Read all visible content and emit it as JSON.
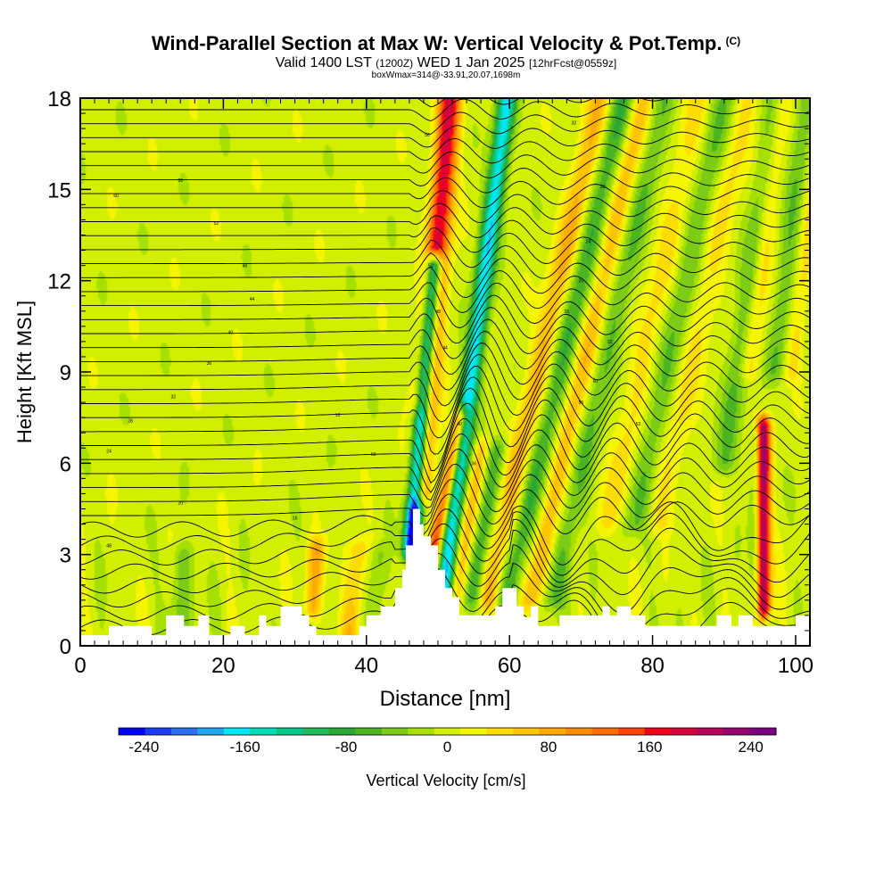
{
  "header": {
    "title": "Wind-Parallel Section at Max W: Vertical Velocity & Pot.Temp.",
    "copyright": "(C)",
    "valid_prefix": "Valid 1400 LST",
    "valid_utc": "(1200Z)",
    "valid_date": "WED 1 Jan 2025",
    "forecast": "[12hrFcst@0559z]",
    "box_info": "boxWmax=314@-33.91,20.07,1698m"
  },
  "chart_data": {
    "type": "heatmap",
    "title": "Wind-Parallel Section at Max W: Vertical Velocity & Pot.Temp.",
    "xlabel": "Distance [nm]",
    "ylabel": "Height [Kft MSL]",
    "xlim": [
      0,
      102
    ],
    "ylim": [
      0,
      18
    ],
    "x_ticks": [
      "0",
      "20",
      "40",
      "60",
      "80",
      "100"
    ],
    "y_ticks": [
      "0",
      "3",
      "6",
      "9",
      "12",
      "15",
      "18"
    ],
    "colorbar": {
      "label": "Vertical Velocity [cm/s]",
      "range": [
        -260,
        260
      ],
      "tick_labels": [
        "-240",
        "-160",
        "-80",
        "0",
        "80",
        "160",
        "240"
      ],
      "colors": [
        "#0000ff",
        "#1a3cf5",
        "#2a6ff0",
        "#21a7f2",
        "#00e6f5",
        "#00ddb8",
        "#00c888",
        "#21b85a",
        "#29a836",
        "#4bb421",
        "#7ccc17",
        "#a6e000",
        "#d2ef00",
        "#f5f500",
        "#ffdc00",
        "#ffc400",
        "#ffaa00",
        "#ff8c00",
        "#ff6c00",
        "#ff4400",
        "#f0001c",
        "#d8003c",
        "#b8005a",
        "#960070",
        "#7a0080"
      ]
    },
    "terrain": [
      [
        0,
        0.35
      ],
      [
        4,
        0.35
      ],
      [
        4,
        0.65
      ],
      [
        10,
        0.65
      ],
      [
        10,
        0.35
      ],
      [
        12,
        0.35
      ],
      [
        12,
        1.0
      ],
      [
        14.5,
        1.0
      ],
      [
        14.5,
        0.65
      ],
      [
        16.5,
        0.65
      ],
      [
        16.5,
        1.0
      ],
      [
        18,
        1.0
      ],
      [
        18,
        0.35
      ],
      [
        21,
        0.35
      ],
      [
        21,
        0.65
      ],
      [
        23,
        0.65
      ],
      [
        23,
        0.35
      ],
      [
        25,
        0.35
      ],
      [
        25,
        1.0
      ],
      [
        26,
        1.0
      ],
      [
        26,
        0.65
      ],
      [
        28,
        0.65
      ],
      [
        28,
        1.3
      ],
      [
        31,
        1.3
      ],
      [
        31,
        1.0
      ],
      [
        32,
        1.0
      ],
      [
        32,
        0.65
      ],
      [
        33,
        0.65
      ],
      [
        33,
        0.35
      ],
      [
        39,
        0.35
      ],
      [
        39,
        0.65
      ],
      [
        40,
        0.65
      ],
      [
        40,
        1.0
      ],
      [
        42,
        1.0
      ],
      [
        42,
        1.3
      ],
      [
        44,
        1.3
      ],
      [
        44,
        1.9
      ],
      [
        45,
        1.9
      ],
      [
        45,
        2.5
      ],
      [
        45.5,
        2.5
      ],
      [
        45.5,
        3.3
      ],
      [
        46.5,
        3.3
      ],
      [
        46.5,
        4.5
      ],
      [
        47.5,
        4.5
      ],
      [
        47.5,
        4.0
      ],
      [
        48,
        4.0
      ],
      [
        48,
        3.6
      ],
      [
        49,
        3.6
      ],
      [
        49,
        3.3
      ],
      [
        50,
        3.3
      ],
      [
        50,
        2.5
      ],
      [
        51,
        2.5
      ],
      [
        51,
        1.9
      ],
      [
        52,
        1.9
      ],
      [
        52,
        1.6
      ],
      [
        53,
        1.6
      ],
      [
        53,
        1.0
      ],
      [
        58,
        1.0
      ],
      [
        58,
        1.3
      ],
      [
        59,
        1.3
      ],
      [
        59,
        1.9
      ],
      [
        61,
        1.9
      ],
      [
        61,
        1.3
      ],
      [
        62,
        1.3
      ],
      [
        62,
        0.95
      ],
      [
        63,
        0.95
      ],
      [
        63,
        1.3
      ],
      [
        64,
        1.3
      ],
      [
        64,
        0.65
      ],
      [
        67,
        0.65
      ],
      [
        67,
        1.0
      ],
      [
        73,
        1.0
      ],
      [
        73,
        1.3
      ],
      [
        74,
        1.3
      ],
      [
        74,
        1.0
      ],
      [
        75,
        1.0
      ],
      [
        75,
        1.3
      ],
      [
        77,
        1.3
      ],
      [
        77,
        1.0
      ],
      [
        79,
        1.0
      ],
      [
        79,
        0.65
      ],
      [
        89,
        0.65
      ],
      [
        89,
        1.0
      ],
      [
        91,
        1.0
      ],
      [
        91,
        0.65
      ],
      [
        92,
        0.65
      ],
      [
        92,
        1.0
      ],
      [
        94,
        1.0
      ],
      [
        94,
        0.65
      ],
      [
        100,
        0.65
      ],
      [
        100,
        1.0
      ],
      [
        102,
        1.0
      ]
    ],
    "wave_bands": [
      {
        "x0": 46.8,
        "y0": 4.8,
        "lean": 0.35,
        "w": 1.1,
        "amp": -280,
        "z0": 3.2,
        "z1": 12.5
      },
      {
        "x0": 49.2,
        "y0": 2.8,
        "lean": 0.85,
        "w": 1.0,
        "amp": 150,
        "z0": 2.0,
        "z1": 7.5
      },
      {
        "x0": 48.5,
        "y0": 8.0,
        "lean": 0.35,
        "w": 1.5,
        "amp": 150,
        "z0": 5.0,
        "z1": 18.5
      },
      {
        "x0": 48.0,
        "y0": 10.0,
        "lean": 0.38,
        "w": 1.2,
        "amp": 60,
        "z0": 8.0,
        "z1": 18.5
      },
      {
        "x0": 52.0,
        "y0": 4.0,
        "lean": 0.55,
        "w": 1.3,
        "amp": -170,
        "z0": 1.5,
        "z1": 18.5
      },
      {
        "x0": 53.5,
        "y0": 3.0,
        "lean": 0.75,
        "w": 1.1,
        "amp": 70,
        "z0": 1.5,
        "z1": 6.5
      },
      {
        "x0": 55.5,
        "y0": 2.5,
        "lean": 0.7,
        "w": 1.3,
        "amp": -70,
        "z0": 1.5,
        "z1": 6.5
      },
      {
        "x0": 57.5,
        "y0": 2.0,
        "lean": 0.95,
        "w": 1.7,
        "amp": 80,
        "z0": 1.5,
        "z1": 18.5
      },
      {
        "x0": 60.5,
        "y0": 2.5,
        "lean": 1.0,
        "w": 1.8,
        "amp": -75,
        "z0": 1.5,
        "z1": 18.5
      },
      {
        "x0": 63.5,
        "y0": 2.0,
        "lean": 0.95,
        "w": 1.6,
        "amp": 70,
        "z0": 1.5,
        "z1": 18.5
      },
      {
        "x0": 66.5,
        "y0": 2.0,
        "lean": 0.95,
        "w": 1.7,
        "amp": -55,
        "z0": 1.5,
        "z1": 18.5
      },
      {
        "x0": 74.0,
        "y0": 4.0,
        "lean": 0.9,
        "w": 2.0,
        "amp": 40,
        "z0": 4.0,
        "z1": 18.5
      },
      {
        "x0": 77.5,
        "y0": 4.0,
        "lean": 0.9,
        "w": 2.0,
        "amp": -55,
        "z0": 4.0,
        "z1": 18.5
      },
      {
        "x0": 80.5,
        "y0": 4.0,
        "lean": 0.9,
        "w": 2.0,
        "amp": 40,
        "z0": 4.0,
        "z1": 18.5
      },
      {
        "x0": 90.0,
        "y0": 6.0,
        "lean": 0.6,
        "w": 1.6,
        "amp": -55,
        "z0": 6.0,
        "z1": 18.5
      },
      {
        "x0": 94.0,
        "y0": 10.0,
        "lean": 0.5,
        "w": 1.4,
        "amp": 50,
        "z0": 9.0,
        "z1": 18.5
      },
      {
        "x0": 97.5,
        "y0": 10.0,
        "lean": 0.5,
        "w": 1.4,
        "amp": -50,
        "z0": 9.0,
        "z1": 18.5
      },
      {
        "x0": 100.0,
        "y0": 10.0,
        "lean": 0.5,
        "w": 1.2,
        "amp": 40,
        "z0": 9.0,
        "z1": 18.5
      },
      {
        "x0": 95.5,
        "y0": 4.2,
        "lean": 0.0,
        "w": 1.0,
        "amp": 230,
        "z0": 1.2,
        "z1": 7.2
      },
      {
        "x0": 94.5,
        "y0": 4.0,
        "lean": 0.0,
        "w": 0.9,
        "amp": -50,
        "z0": 1.2,
        "z1": 7.0
      },
      {
        "x0": 38.0,
        "y0": 1.0,
        "lean": 0.4,
        "w": 1.5,
        "amp": 60,
        "z0": 0.3,
        "z1": 3.2
      },
      {
        "x0": 41.0,
        "y0": 1.0,
        "lean": 0.3,
        "w": 1.3,
        "amp": -40,
        "z0": 0.3,
        "z1": 3.0
      },
      {
        "x0": 32.5,
        "y0": 1.5,
        "lean": 0.3,
        "w": 1.2,
        "amp": 80,
        "z0": 1.2,
        "z1": 3.2
      },
      {
        "x0": 14.0,
        "y0": 1.0,
        "lean": 0.2,
        "w": 1.6,
        "amp": -45,
        "z0": 0.5,
        "z1": 3.0
      }
    ],
    "contour_levels": 40,
    "contour_labels": [
      "60",
      "56",
      "52",
      "48",
      "44",
      "40",
      "36",
      "32",
      "28",
      "24",
      "20",
      "16",
      "12"
    ]
  }
}
